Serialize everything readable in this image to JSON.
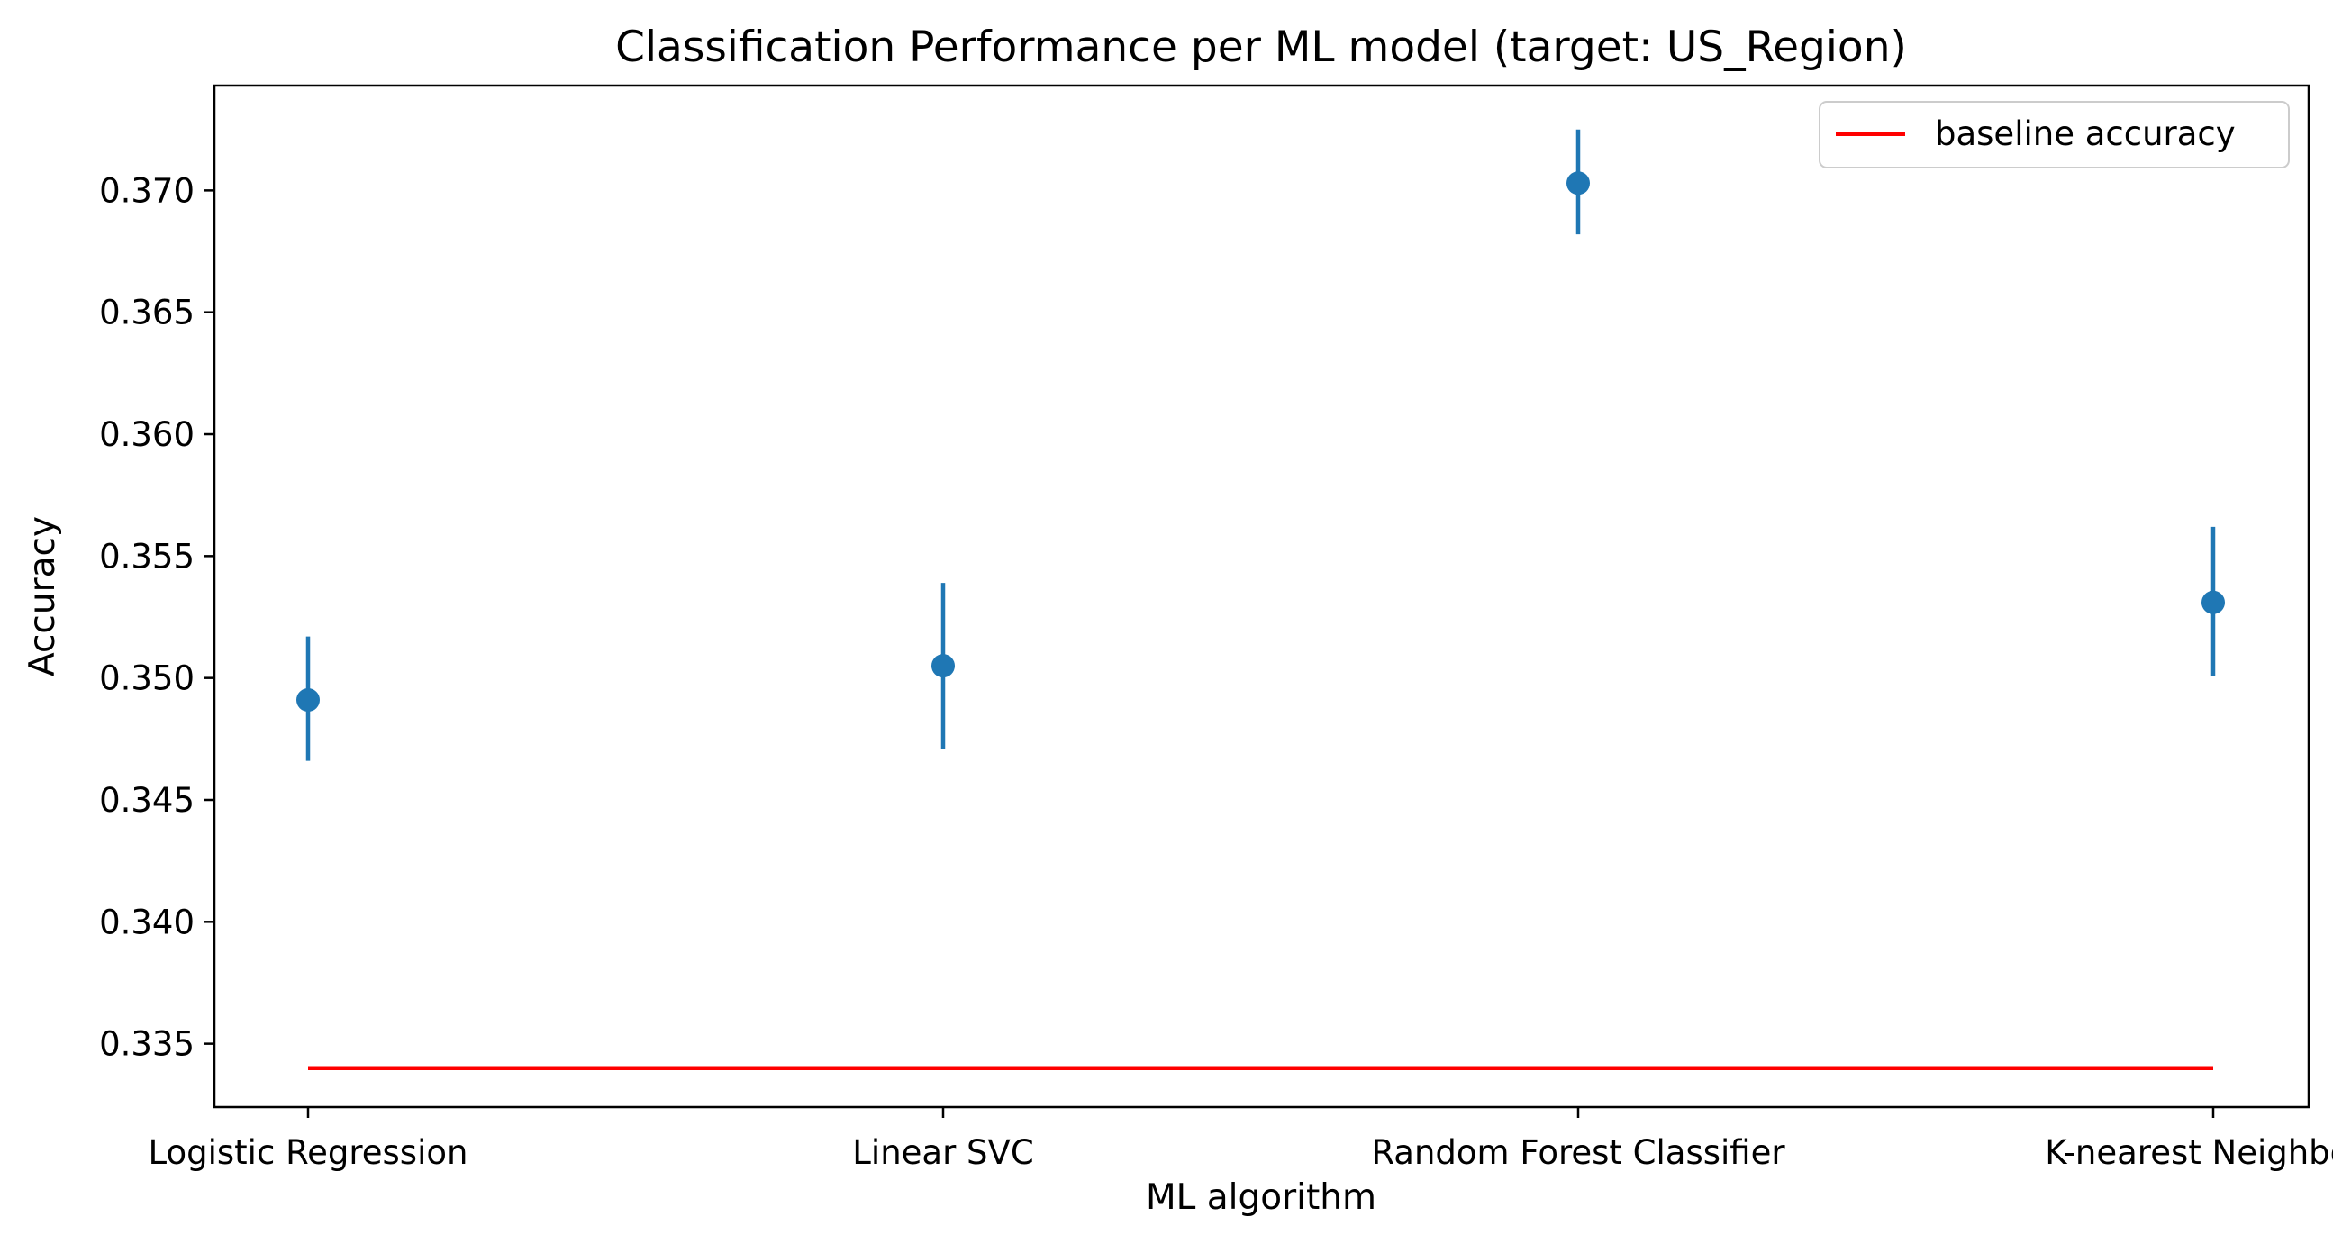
{
  "chart_data": {
    "type": "scatter",
    "title": "Classification Performance per ML model (target: US_Region)",
    "xlabel": "ML algorithm",
    "ylabel": "Accuracy",
    "categories": [
      "Logistic Regression",
      "Linear SVC",
      "Random Forest Classifier",
      "K-nearest Neighbors"
    ],
    "series": [
      {
        "values": [
          0.3491,
          0.3505,
          0.3703,
          0.3531
        ],
        "error_low": [
          0.3466,
          0.3471,
          0.3682,
          0.3501
        ],
        "error_high": [
          0.3517,
          0.3539,
          0.3725,
          0.3562
        ],
        "color": "#1f77b4"
      }
    ],
    "baseline": {
      "name": "baseline accuracy",
      "value": 0.334,
      "color": "#ff0000"
    },
    "ylim": [
      0.3324,
      0.3743
    ],
    "yticks": [
      0.335,
      0.34,
      0.345,
      0.35,
      0.355,
      0.36,
      0.365,
      0.37
    ],
    "ytick_labels": [
      "0.335",
      "0.340",
      "0.345",
      "0.350",
      "0.355",
      "0.360",
      "0.365",
      "0.370"
    ],
    "grid": false,
    "legend_position": "top-right"
  }
}
